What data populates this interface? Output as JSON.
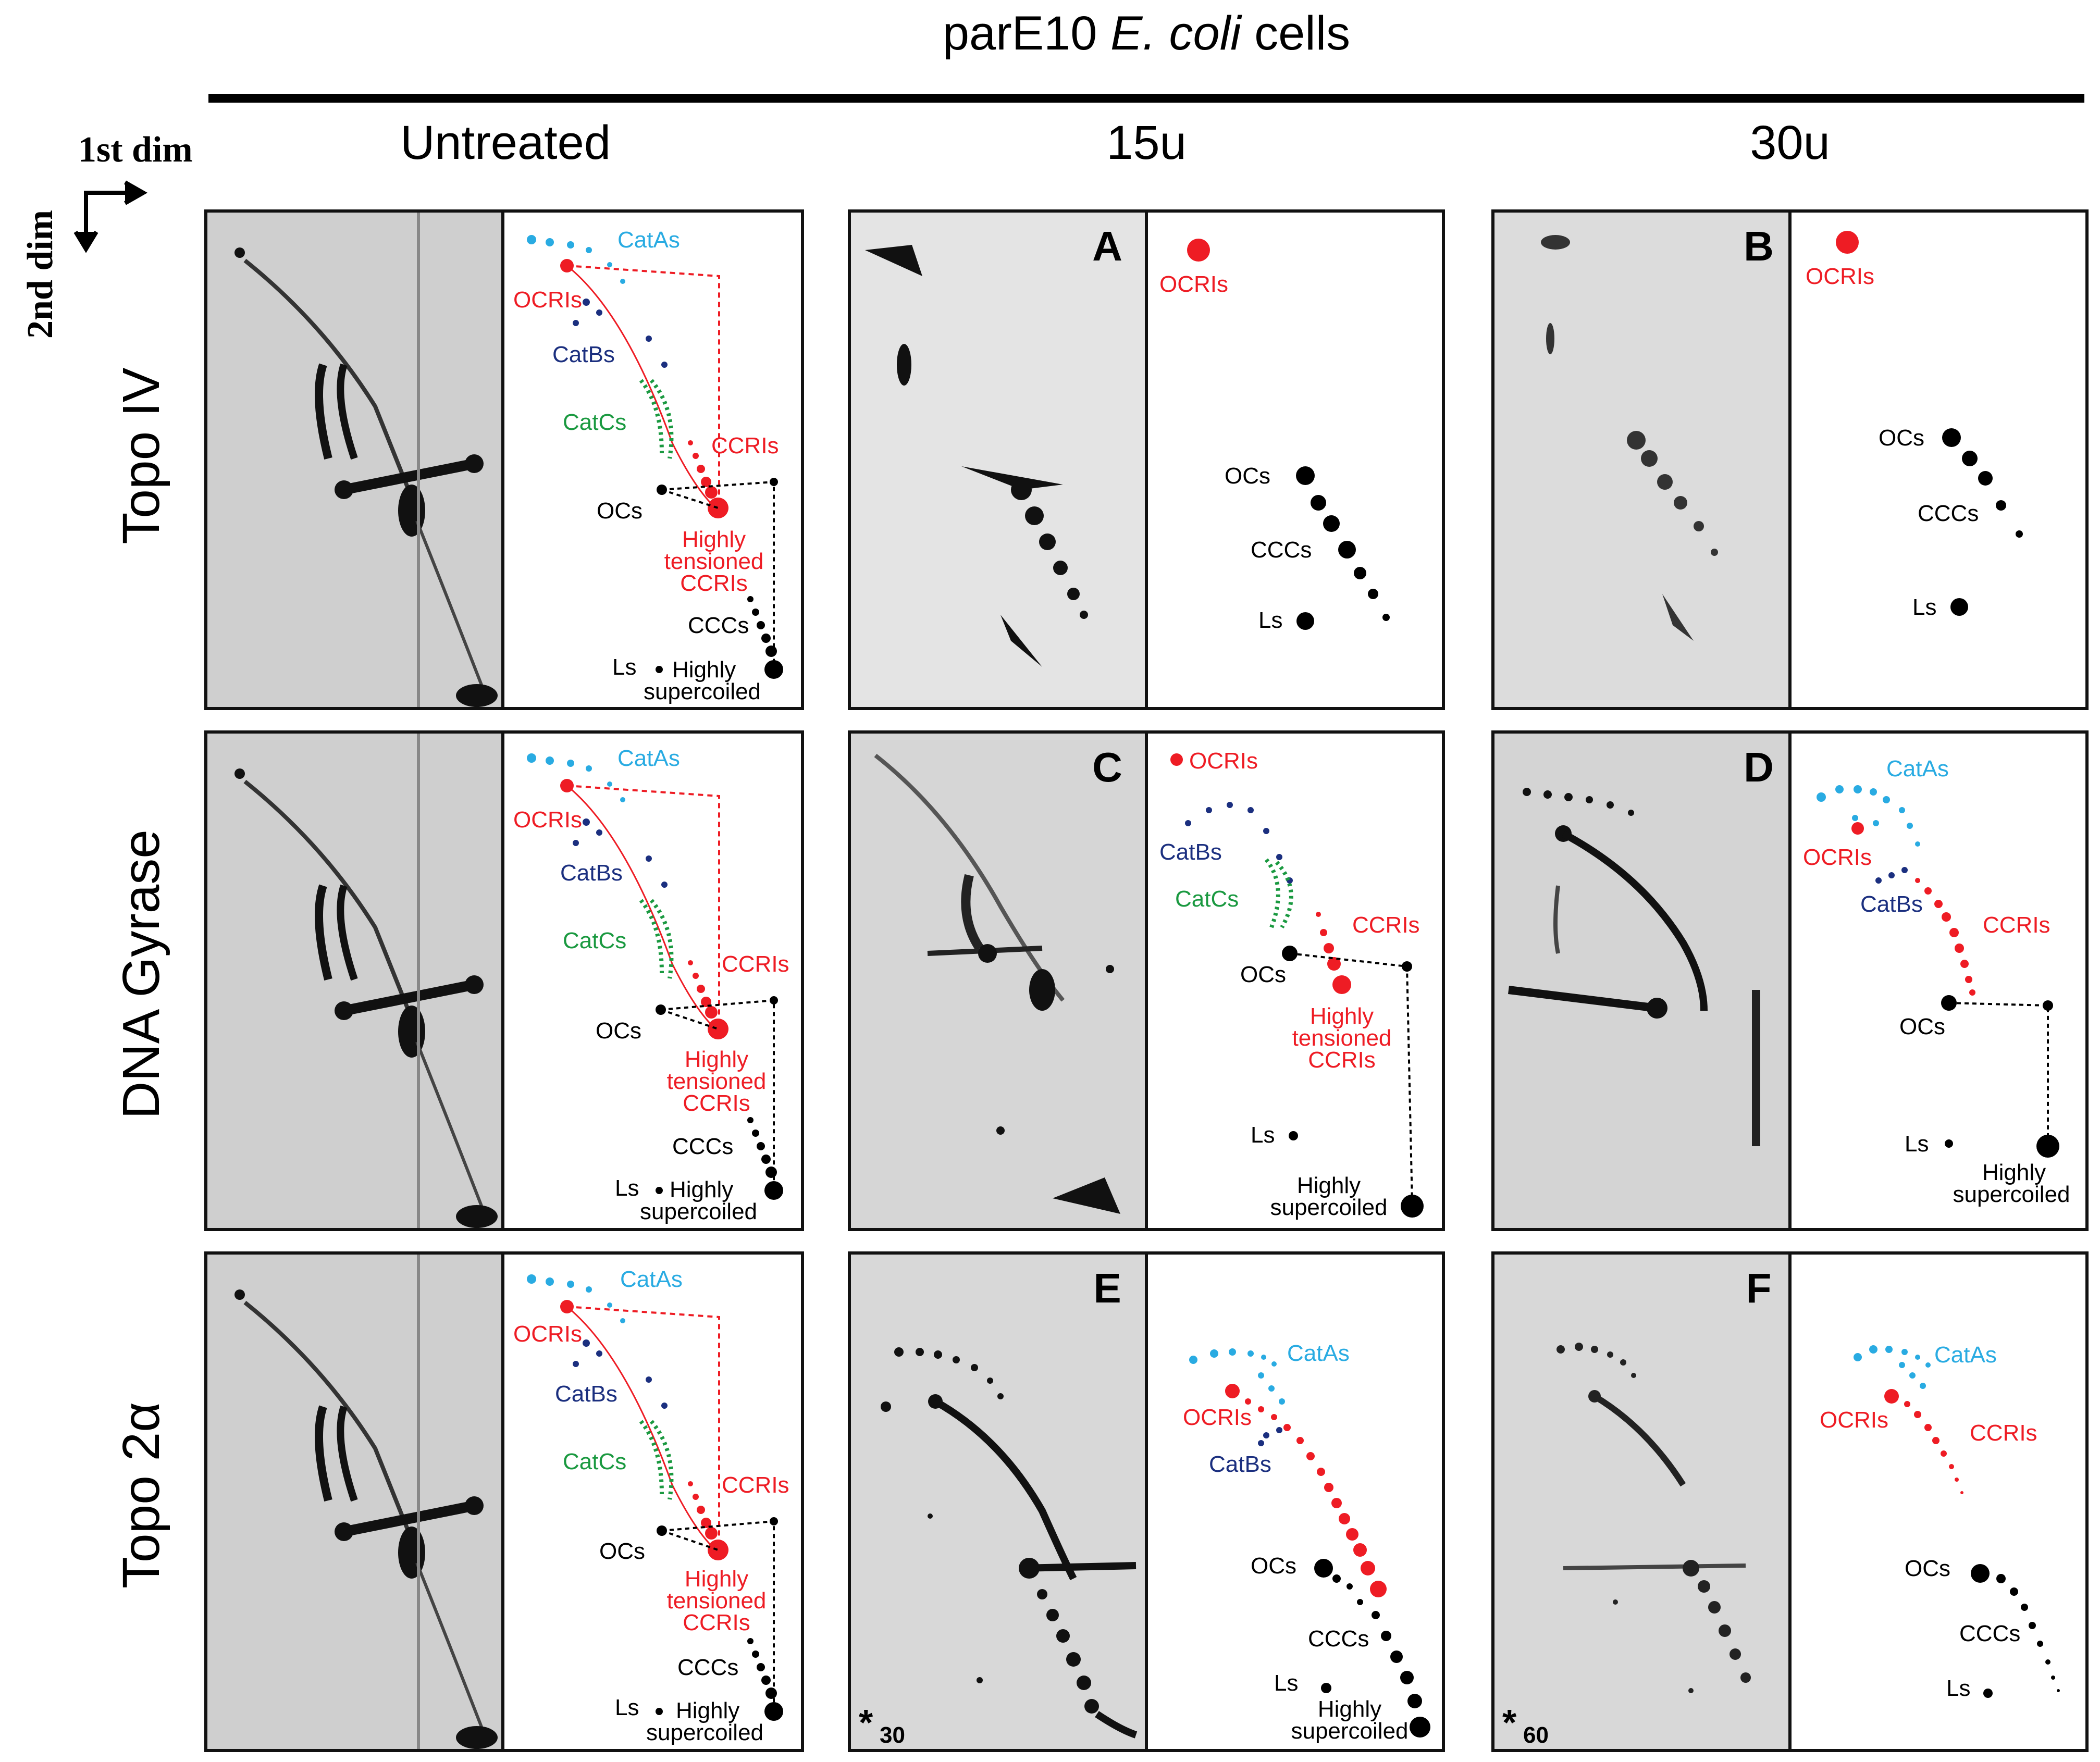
{
  "title": {
    "prefix": "parE10 ",
    "species": "E. coli",
    "suffix": " cells"
  },
  "axes": {
    "first": "1st dim",
    "second": "2nd dim"
  },
  "columns": [
    "Untreated",
    "15u",
    "30u"
  ],
  "rows": [
    "Topo IV",
    "DNA Gyrase",
    "Topo 2α"
  ],
  "panel_letters": [
    "A",
    "B",
    "C",
    "D",
    "E",
    "F"
  ],
  "asterisk": "*",
  "star_values": [
    "30",
    "60"
  ],
  "labels": {
    "catas": "CatAs",
    "ocris": "OCRIs",
    "catbs": "CatBs",
    "catcs": "CatCs",
    "ccris": "CCRIs",
    "ocs": "OCs",
    "ht1": "Highly",
    "ht2": "tensioned",
    "ht3": "CCRIs",
    "cccs": "CCCs",
    "ls": "Ls",
    "hs1": "Highly",
    "hs2": "supercoiled"
  },
  "colors": {
    "frame": "#111111",
    "black": "#000000",
    "red": "#ee1c24",
    "cyan": "#29abe2",
    "navy": "#1b2f7f",
    "green": "#1a9940",
    "gel_bg": "#d9d9d9",
    "gel_mark": "#151515"
  }
}
